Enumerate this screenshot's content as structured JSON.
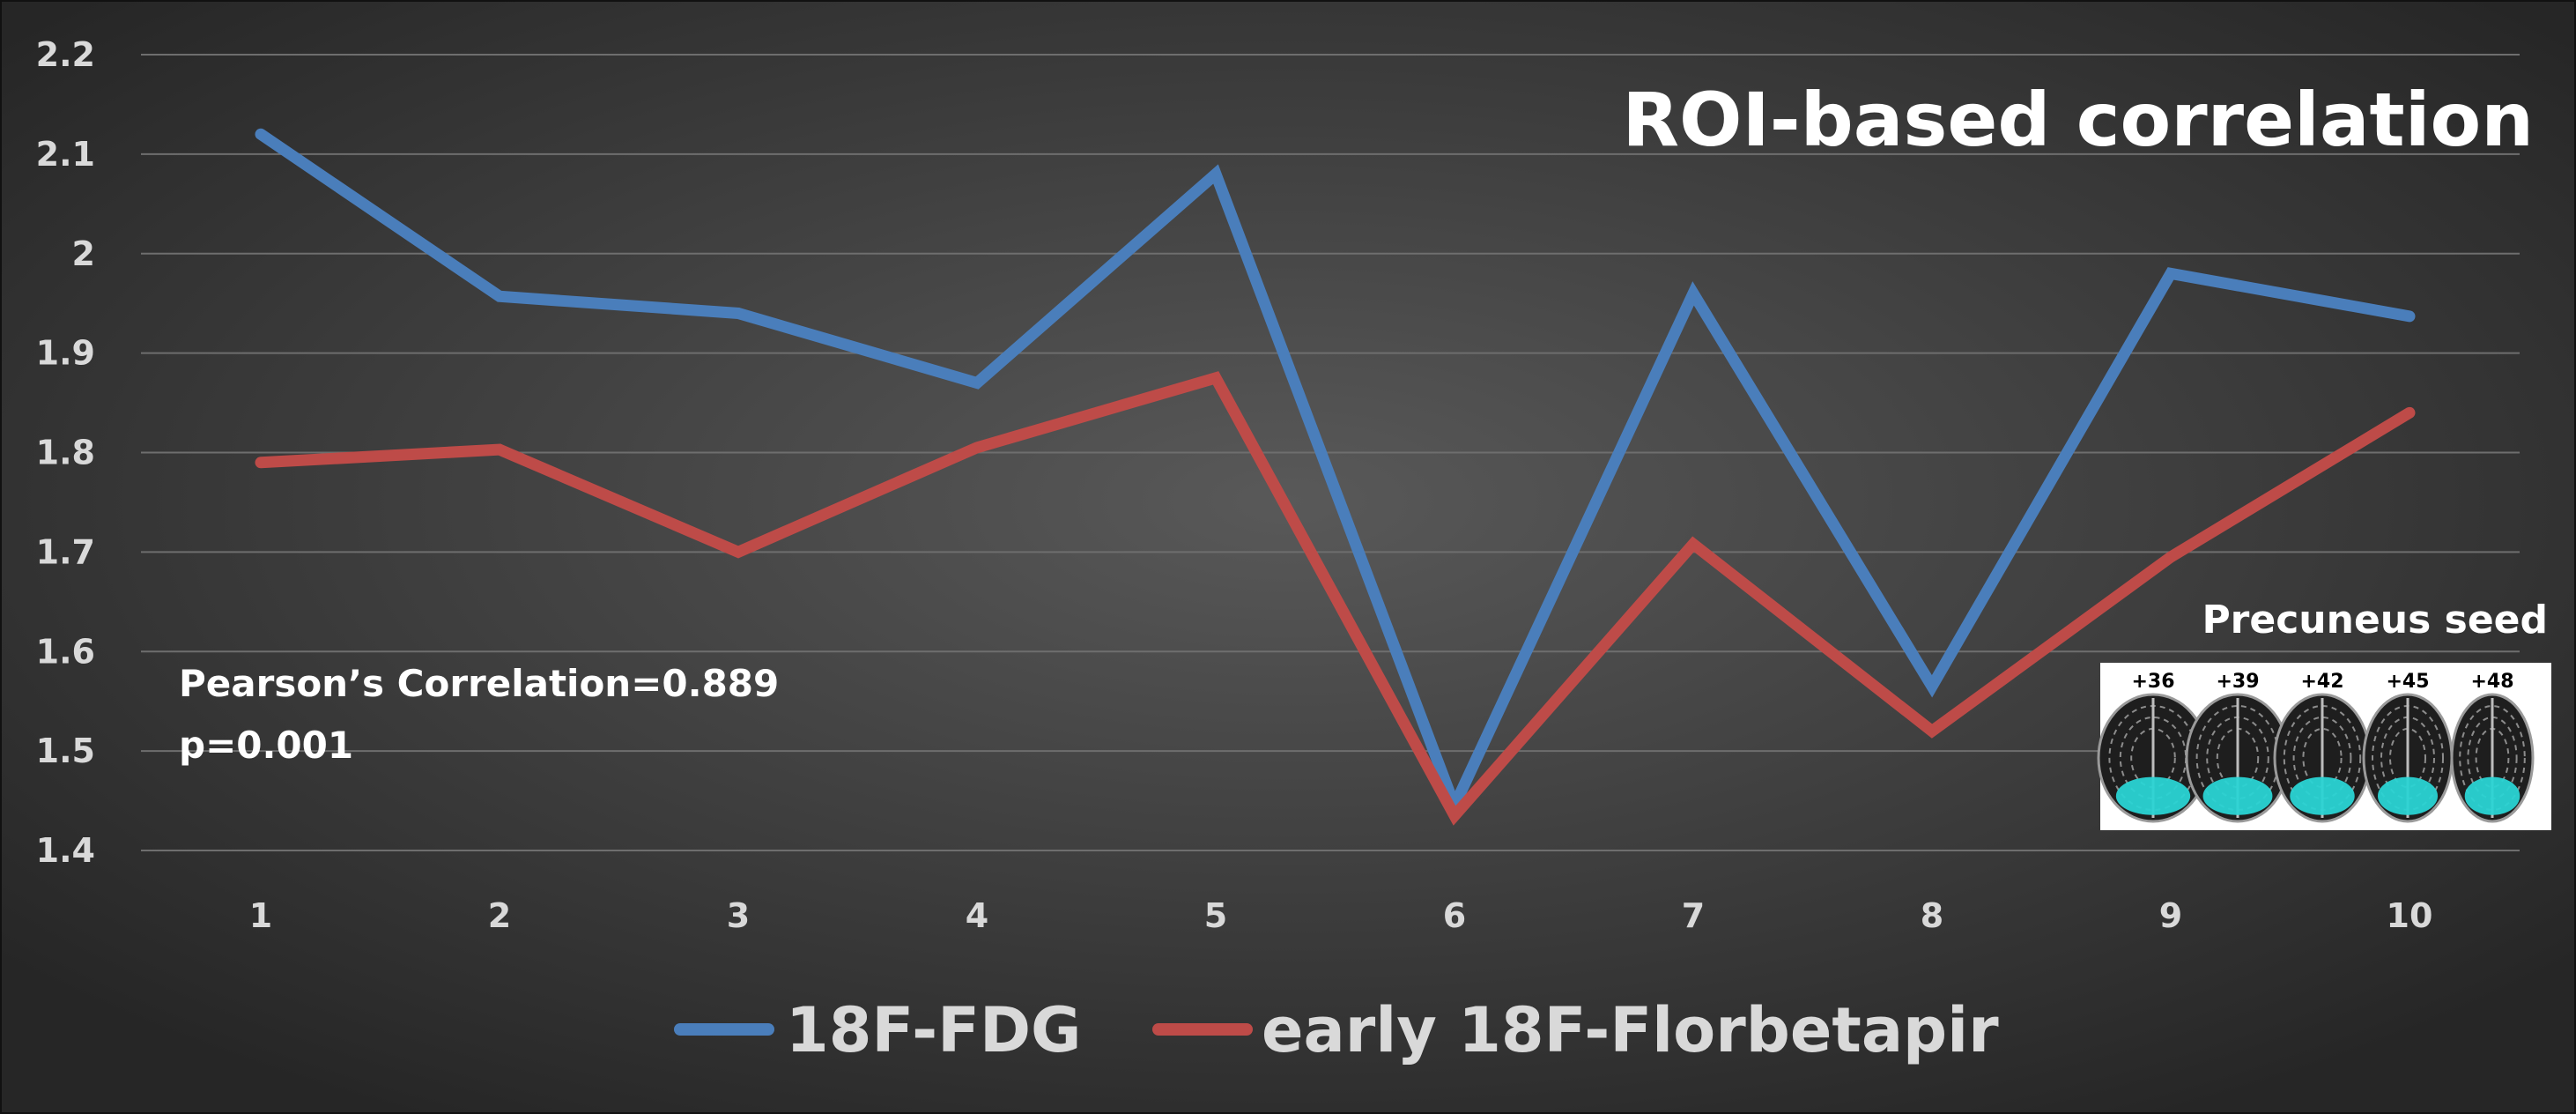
{
  "chart_data": {
    "type": "line",
    "title": "ROI-based correlation",
    "xlabel": "",
    "ylabel": "",
    "categories": [
      "1",
      "2",
      "3",
      "4",
      "5",
      "6",
      "7",
      "8",
      "9",
      "10"
    ],
    "ylim": [
      1.4,
      2.2
    ],
    "yticks": [
      "1.4",
      "1.5",
      "1.6",
      "1.7",
      "1.8",
      "1.9",
      "2",
      "2.1",
      "2.2"
    ],
    "grid": true,
    "legend_position": "bottom",
    "series": [
      {
        "name": "18F-FDG",
        "color": "#4a7ebb",
        "values": [
          2.12,
          1.957,
          1.94,
          1.87,
          2.08,
          1.445,
          1.96,
          1.565,
          1.98,
          1.937
        ]
      },
      {
        "name": "early 18F-Florbetapir",
        "color": "#be4b48",
        "values": [
          1.79,
          1.803,
          1.7,
          1.805,
          1.875,
          1.435,
          1.708,
          1.52,
          1.695,
          1.84
        ]
      }
    ],
    "annotations": [
      "Pearson’s Correlation=0.889",
      "p=0.001"
    ],
    "inset": {
      "title": "Precuneus seed",
      "labels": [
        "+36",
        "+39",
        "+42",
        "+45",
        "+48"
      ],
      "highlight_color": "#2ad4d4"
    }
  }
}
